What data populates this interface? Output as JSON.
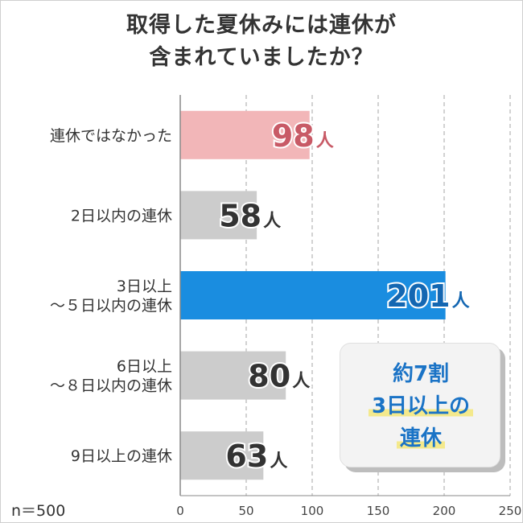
{
  "title_lines": [
    "取得した夏休みには連休が",
    "含まれていましたか？"
  ],
  "sample_size": "n＝500",
  "callout": {
    "line1": "約7割",
    "line2": "3日以上の",
    "line3": "連休"
  },
  "chart_data": {
    "type": "bar",
    "orientation": "horizontal",
    "categories": [
      [
        "連休ではなかった"
      ],
      [
        "2日以内の連休"
      ],
      [
        "3日以上",
        "～５日以内の連休"
      ],
      [
        "6日以上",
        "～８日以内の連休"
      ],
      [
        "9日以上の連休"
      ]
    ],
    "values": [
      98,
      58,
      201,
      80,
      63
    ],
    "value_unit": "人",
    "xlim": [
      0,
      250
    ],
    "xticks": [
      0,
      50,
      100,
      150,
      200,
      250
    ],
    "grid": true,
    "colors": [
      "#f2b6b8",
      "#cccccc",
      "#1a8de0",
      "#cccccc",
      "#cccccc"
    ],
    "label_colors": [
      "#c85a66",
      "#333333",
      "#1467b2",
      "#333333",
      "#333333"
    ]
  }
}
